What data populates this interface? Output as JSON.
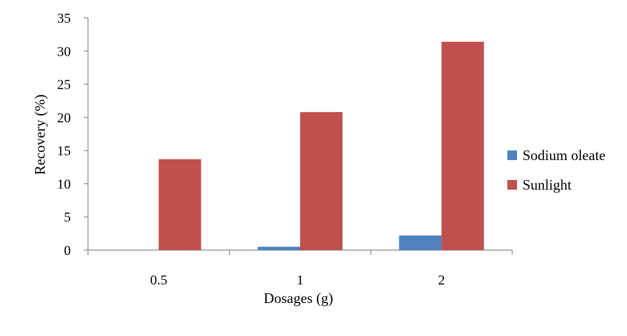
{
  "chart_data": {
    "type": "bar",
    "title": "",
    "xlabel": "Dosages (g)",
    "ylabel": "Recovery (%)",
    "categories": [
      "0.5",
      "1",
      "2"
    ],
    "ylim": [
      0,
      35
    ],
    "yticks": [
      "0",
      "5",
      "10",
      "15",
      "20",
      "25",
      "30",
      "35"
    ],
    "grid": false,
    "legend_position": "right",
    "series": [
      {
        "name": "Sodium oleate",
        "color": "#4f81bd",
        "values": [
          0,
          0.5,
          2.2
        ]
      },
      {
        "name": "Sunlight",
        "color": "#c0504d",
        "values": [
          13.7,
          20.8,
          31.4
        ]
      }
    ]
  }
}
